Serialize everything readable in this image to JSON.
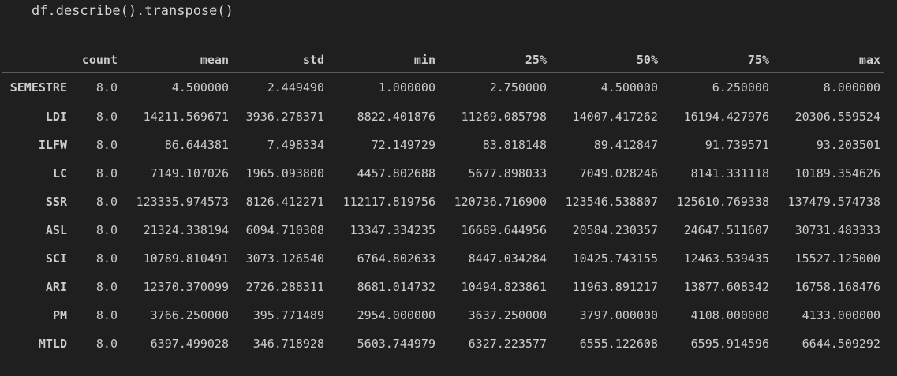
{
  "cell": {
    "code": "df.describe().transpose()"
  },
  "table": {
    "columns": [
      "count",
      "mean",
      "std",
      "min",
      "25%",
      "50%",
      "75%",
      "max"
    ],
    "rows": [
      {
        "index": "SEMESTRE",
        "values": [
          "8.0",
          "4.500000",
          "2.449490",
          "1.000000",
          "2.750000",
          "4.500000",
          "6.250000",
          "8.000000"
        ]
      },
      {
        "index": "LDI",
        "values": [
          "8.0",
          "14211.569671",
          "3936.278371",
          "8822.401876",
          "11269.085798",
          "14007.417262",
          "16194.427976",
          "20306.559524"
        ]
      },
      {
        "index": "ILFW",
        "values": [
          "8.0",
          "86.644381",
          "7.498334",
          "72.149729",
          "83.818148",
          "89.412847",
          "91.739571",
          "93.203501"
        ]
      },
      {
        "index": "LC",
        "values": [
          "8.0",
          "7149.107026",
          "1965.093800",
          "4457.802688",
          "5677.898033",
          "7049.028246",
          "8141.331118",
          "10189.354626"
        ]
      },
      {
        "index": "SSR",
        "values": [
          "8.0",
          "123335.974573",
          "8126.412271",
          "112117.819756",
          "120736.716900",
          "123546.538807",
          "125610.769338",
          "137479.574738"
        ]
      },
      {
        "index": "ASL",
        "values": [
          "8.0",
          "21324.338194",
          "6094.710308",
          "13347.334235",
          "16689.644956",
          "20584.230357",
          "24647.511607",
          "30731.483333"
        ]
      },
      {
        "index": "SCI",
        "values": [
          "8.0",
          "10789.810491",
          "3073.126540",
          "6764.802633",
          "8447.034284",
          "10425.743155",
          "12463.539435",
          "15527.125000"
        ]
      },
      {
        "index": "ARI",
        "values": [
          "8.0",
          "12370.370099",
          "2726.288311",
          "8681.014732",
          "10494.823861",
          "11963.891217",
          "13877.608342",
          "16758.168476"
        ]
      },
      {
        "index": "PM",
        "values": [
          "8.0",
          "3766.250000",
          "395.771489",
          "2954.000000",
          "3637.250000",
          "3797.000000",
          "4108.000000",
          "4133.000000"
        ]
      },
      {
        "index": "MTLD",
        "values": [
          "8.0",
          "6397.499028",
          "346.718928",
          "5603.744979",
          "6327.223577",
          "6555.122608",
          "6595.914596",
          "6644.509292"
        ]
      }
    ]
  }
}
